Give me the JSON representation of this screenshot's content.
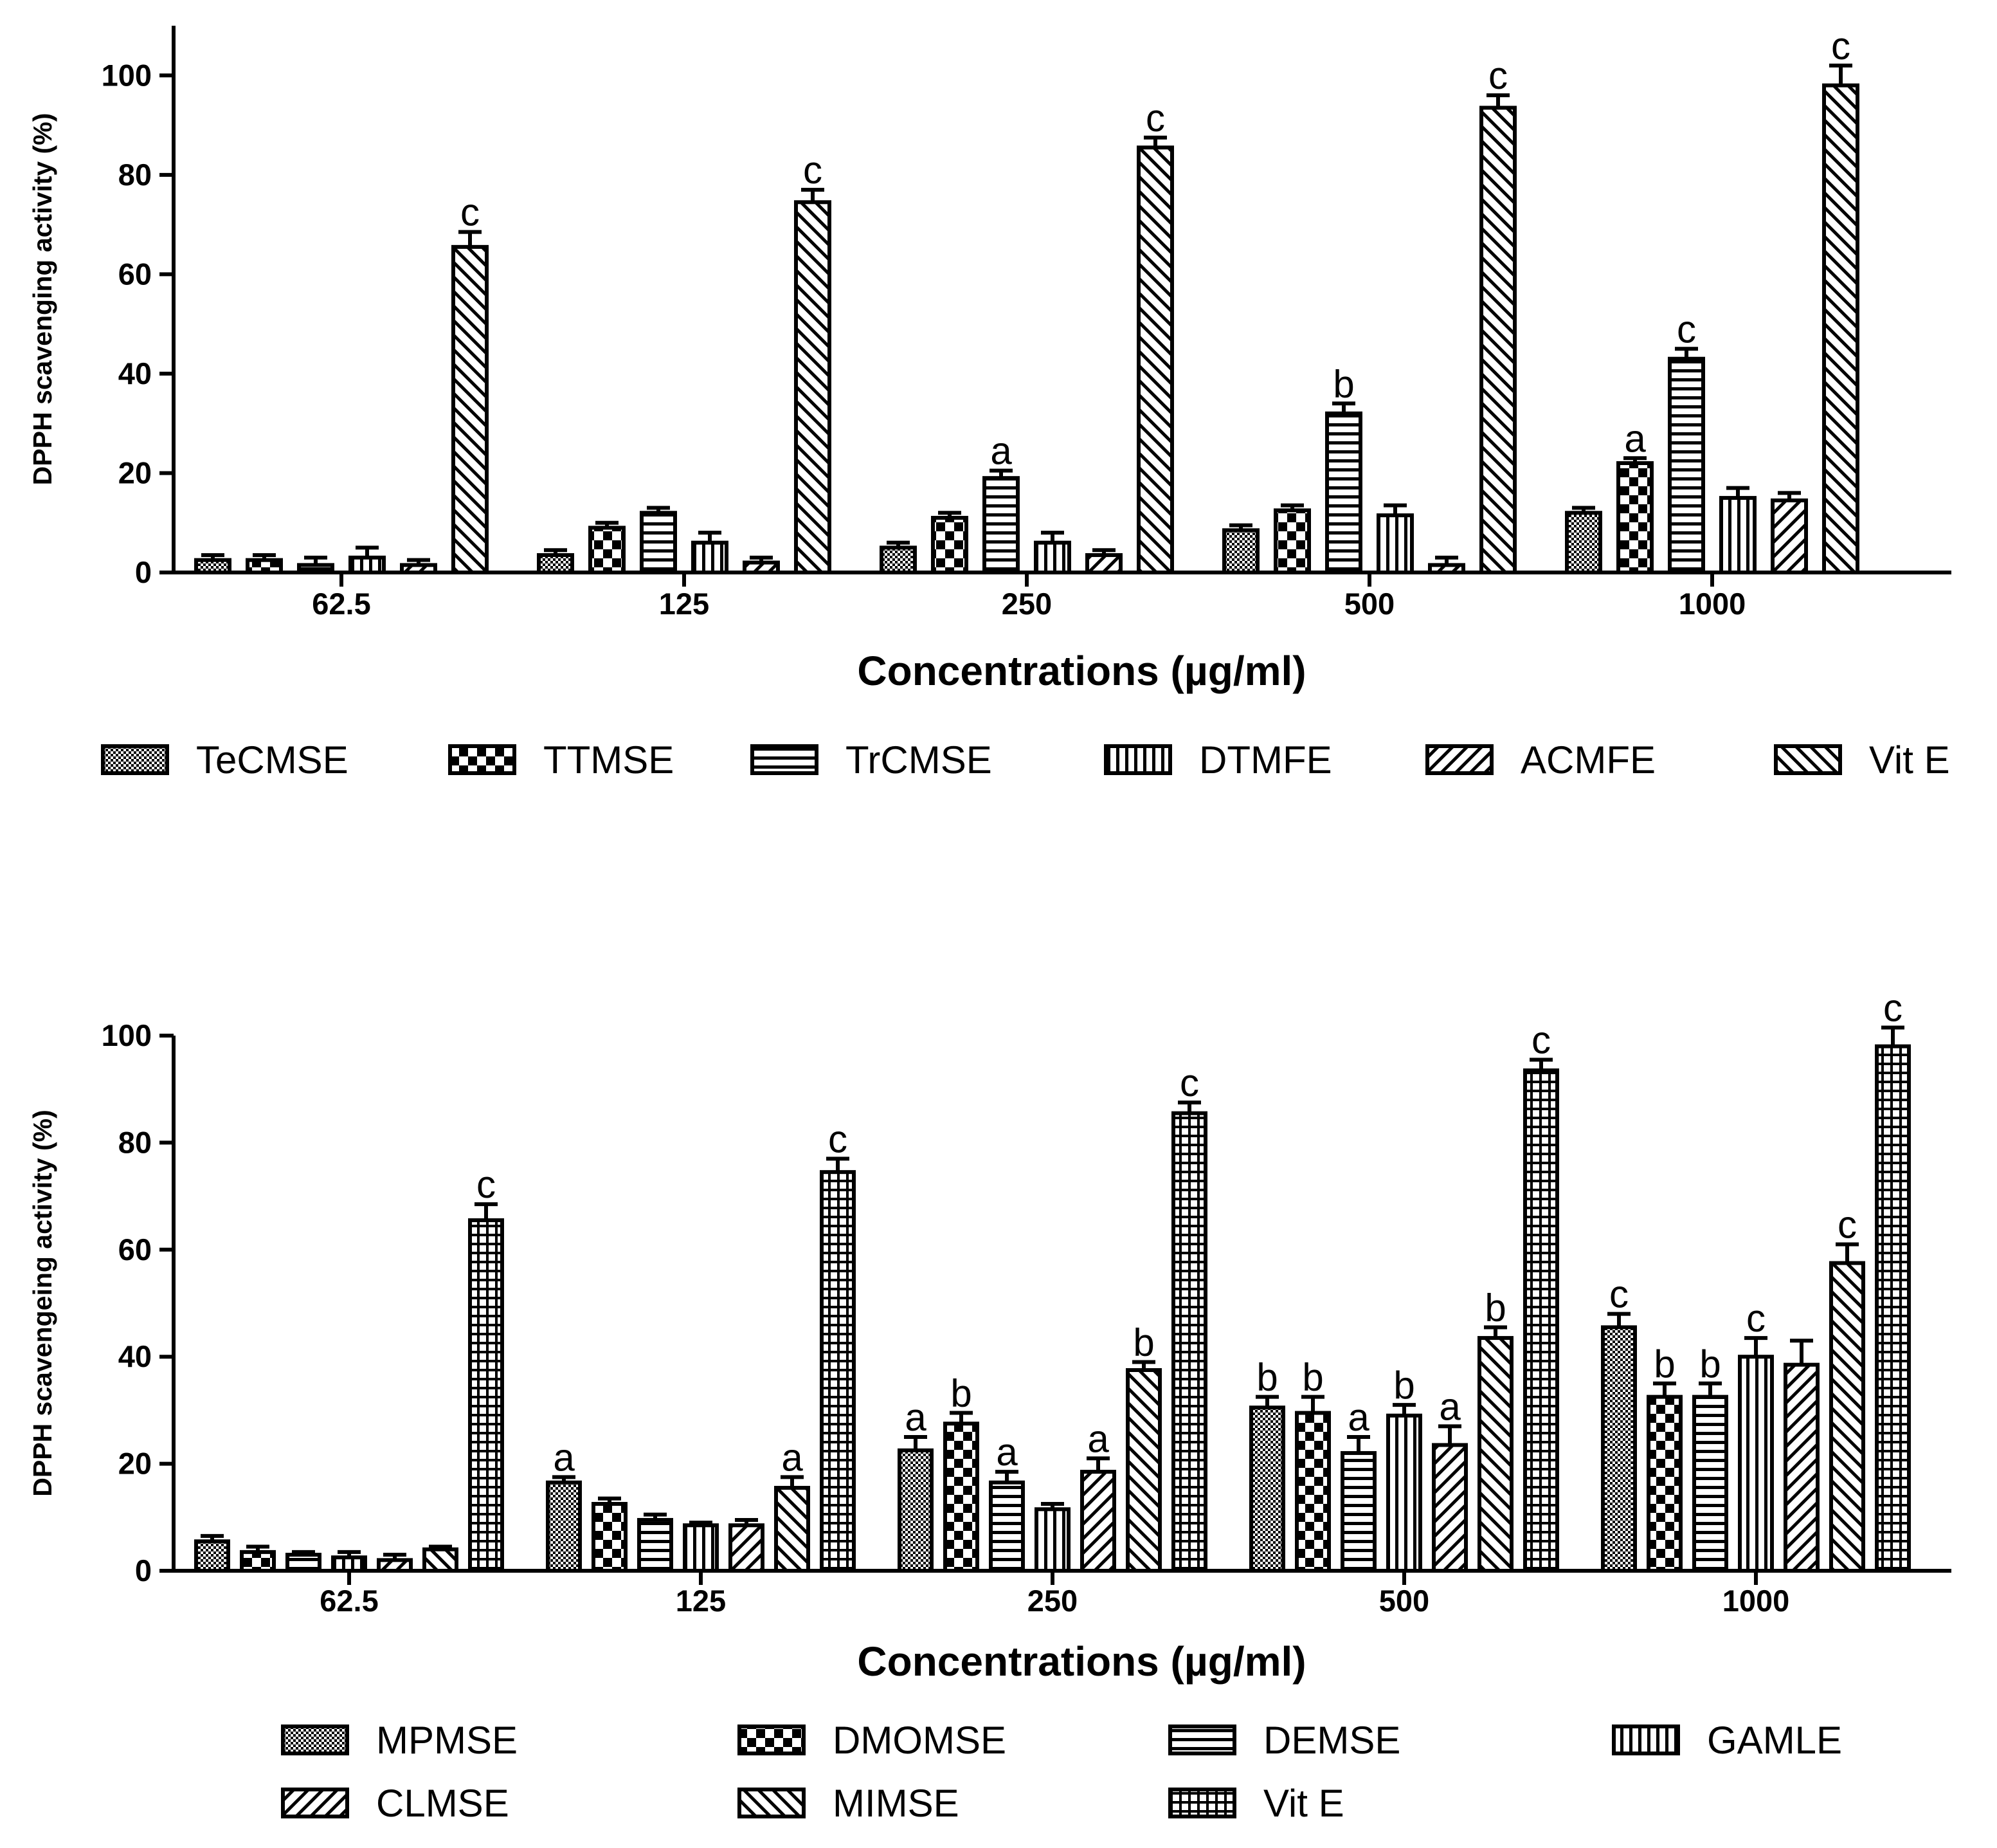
{
  "chart_data": [
    {
      "type": "bar",
      "categories": [
        "62.5",
        "125",
        "250",
        "500",
        "1000"
      ],
      "xlabel": "Concentrations (µg/ml)",
      "ylabel": "DPPH scavenging activity (%)",
      "ylim": [
        0,
        110
      ],
      "yticks": [
        0,
        20,
        40,
        60,
        80,
        100
      ],
      "series": [
        {
          "name": "TeCMSE",
          "pattern": "check",
          "values": [
            2.5,
            3.5,
            5,
            8.5,
            12
          ],
          "errors": [
            1,
            1,
            1,
            1,
            1
          ],
          "labels": [
            "",
            "",
            "",
            "",
            ""
          ]
        },
        {
          "name": "TTMSE",
          "pattern": "bigcheck",
          "values": [
            2.5,
            9,
            11,
            12.5,
            22
          ],
          "errors": [
            1,
            1,
            1,
            1,
            1
          ],
          "labels": [
            "",
            "",
            "",
            "",
            "a"
          ]
        },
        {
          "name": "TrCMSE",
          "pattern": "hstripe",
          "values": [
            1.5,
            12,
            19,
            32,
            43
          ],
          "errors": [
            1.5,
            1,
            1.5,
            2,
            2
          ],
          "labels": [
            "",
            "",
            "a",
            "b",
            "c"
          ]
        },
        {
          "name": "DTMFE",
          "pattern": "vstripe",
          "values": [
            3,
            6,
            6,
            11.5,
            15
          ],
          "errors": [
            2,
            2,
            2,
            2,
            2
          ],
          "labels": [
            "",
            "",
            "",
            "",
            ""
          ]
        },
        {
          "name": "ACMFE",
          "pattern": "diag",
          "values": [
            1.5,
            2,
            3.5,
            1.5,
            14.5
          ],
          "errors": [
            1,
            1,
            1,
            1.5,
            1.5
          ],
          "labels": [
            "",
            "",
            "",
            "",
            ""
          ]
        },
        {
          "name": "Vit E",
          "pattern": "rdiag",
          "values": [
            65.5,
            74.5,
            85.5,
            93.5,
            98
          ],
          "errors": [
            3,
            2.5,
            2,
            2.5,
            4
          ],
          "labels": [
            "c",
            "c",
            "c",
            "c",
            "c"
          ]
        }
      ],
      "legend_rows": [
        [
          "TeCMSE",
          "TTMSE",
          "TrCMSE",
          "DTMFE",
          "ACMFE",
          "Vit E"
        ]
      ]
    },
    {
      "type": "bar",
      "categories": [
        "62.5",
        "125",
        "250",
        "500",
        "1000"
      ],
      "xlabel": "Concentrations (µg/ml)",
      "ylabel": "DPPH scavengeing activity (%)",
      "ylim": [
        0,
        100
      ],
      "yticks": [
        0,
        20,
        40,
        60,
        80,
        100
      ],
      "series": [
        {
          "name": "MPMSE",
          "pattern": "check",
          "values": [
            5.5,
            16.5,
            22.5,
            30.5,
            45.5
          ],
          "errors": [
            1,
            1,
            2.5,
            2,
            2.5
          ],
          "labels": [
            "",
            "a",
            "a",
            "b",
            "c"
          ]
        },
        {
          "name": "DMOMSE",
          "pattern": "bigcheck",
          "values": [
            3.5,
            12.5,
            27.5,
            29.5,
            32.5
          ],
          "errors": [
            1,
            1,
            2,
            3,
            2.5
          ],
          "labels": [
            "",
            "",
            "b",
            "b",
            "b"
          ]
        },
        {
          "name": "DEMSE",
          "pattern": "hstripe",
          "values": [
            3,
            9.5,
            16.5,
            22,
            32.5
          ],
          "errors": [
            0.5,
            1,
            2,
            3,
            2.5
          ],
          "labels": [
            "",
            "",
            "a",
            "a",
            "b"
          ]
        },
        {
          "name": "GAMLE",
          "pattern": "vstripe",
          "values": [
            2.5,
            8.5,
            11.5,
            29,
            40
          ],
          "errors": [
            1,
            0.5,
            1,
            2,
            3.5
          ],
          "labels": [
            "",
            "",
            "",
            "b",
            "c"
          ]
        },
        {
          "name": "CLMSE",
          "pattern": "diag",
          "values": [
            2,
            8.5,
            18.5,
            23.5,
            38.5
          ],
          "errors": [
            1,
            1,
            2.5,
            3.5,
            4.5
          ],
          "labels": [
            "",
            "",
            "a",
            "a",
            ""
          ]
        },
        {
          "name": "MIMSE",
          "pattern": "rdiag",
          "values": [
            4,
            15.5,
            37.5,
            43.5,
            57.5
          ],
          "errors": [
            0.5,
            2,
            1.5,
            2,
            3.5
          ],
          "labels": [
            "",
            "a",
            "b",
            "b",
            "c"
          ]
        },
        {
          "name": "Vit E",
          "pattern": "grid",
          "values": [
            65.5,
            74.5,
            85.5,
            93.5,
            98
          ],
          "errors": [
            3,
            2.5,
            2,
            2,
            3.5
          ],
          "labels": [
            "c",
            "c",
            "c",
            "c",
            "c"
          ]
        }
      ],
      "legend_rows": [
        [
          "MPMSE",
          "DMOMSE",
          "DEMSE",
          "GAMLE"
        ],
        [
          "CLMSE",
          "MIMSE",
          "Vit E"
        ]
      ]
    }
  ]
}
